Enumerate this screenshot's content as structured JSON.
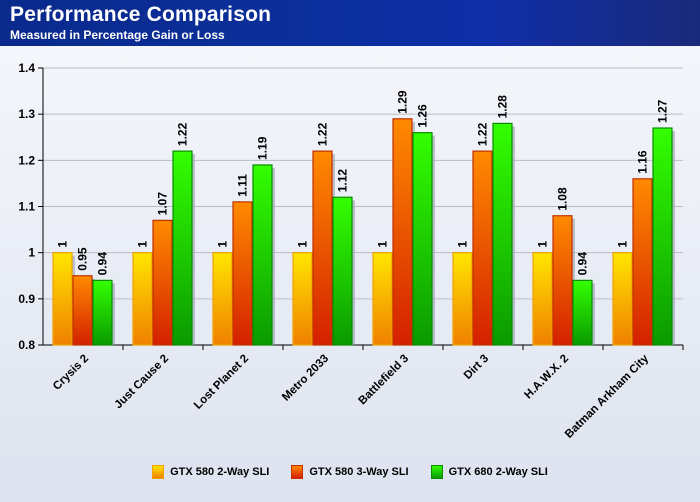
{
  "header": {
    "title": "Performance Comparison",
    "subtitle": "Measured in Percentage Gain or Loss"
  },
  "colors": {
    "header_bg": "#0b2f9c",
    "series": [
      {
        "top": "#ffe600",
        "bottom": "#f08000",
        "border": "#f0a000"
      },
      {
        "top": "#ff8a00",
        "bottom": "#d42000",
        "border": "#c03000"
      },
      {
        "top": "#33ff00",
        "bottom": "#0a9a00",
        "border": "#0a8a00"
      }
    ]
  },
  "chart_data": {
    "type": "bar",
    "categories": [
      "Crysis 2",
      "Just Cause 2",
      "Lost Planet 2",
      "Metro 2033",
      "Battlefield 3",
      "Dirt 3",
      "H.A.W.X. 2",
      "Batman Arkham City"
    ],
    "series": [
      {
        "name": "GTX 580 2-Way SLI",
        "values": [
          1,
          1,
          1,
          1,
          1,
          1,
          1,
          1
        ]
      },
      {
        "name": "GTX 580 3-Way SLI",
        "values": [
          0.95,
          1.07,
          1.11,
          1.22,
          1.29,
          1.22,
          1.08,
          1.16
        ]
      },
      {
        "name": "GTX 680 2-Way SLI",
        "values": [
          0.94,
          1.22,
          1.19,
          1.12,
          1.26,
          1.28,
          0.94,
          1.27
        ]
      }
    ],
    "data_labels": [
      [
        "1",
        "1",
        "1",
        "1",
        "1",
        "1",
        "1",
        "1"
      ],
      [
        "0.95",
        "1.07",
        "1.11",
        "1.22",
        "1.29",
        "1.22",
        "1.08",
        "1.16"
      ],
      [
        "0.94",
        "1.22",
        "1.19",
        "1.12",
        "1.26",
        "1.28",
        "0.94",
        "1.27"
      ]
    ],
    "ylim": [
      0.8,
      1.4
    ],
    "yticks": [
      0.8,
      0.9,
      1,
      1.1,
      1.2,
      1.3,
      1.4
    ],
    "ytick_labels": [
      "0.8",
      "0.9",
      "1",
      "1.1",
      "1.2",
      "1.3",
      "1.4"
    ],
    "grid": true,
    "legend_position": "bottom"
  }
}
